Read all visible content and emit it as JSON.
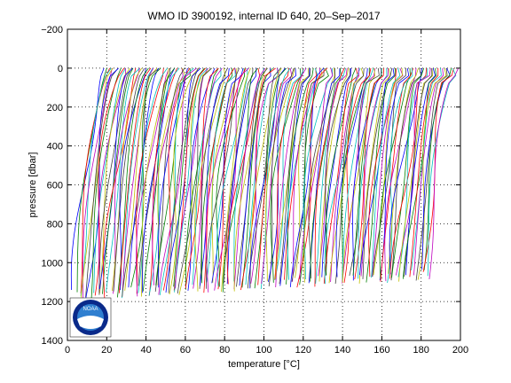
{
  "chart_data": {
    "type": "line",
    "title": "WMO ID 3900192, internal ID 640, 20–Sep–2017",
    "xlabel": "temperature [°C]",
    "ylabel": "pressure [dbar]",
    "xlim": [
      0,
      200
    ],
    "ylim": [
      -200,
      1400
    ],
    "y_reversed": true,
    "grid": true,
    "grid_style": "dotted",
    "xticks": [
      "0",
      "20",
      "40",
      "60",
      "80",
      "100",
      "120",
      "140",
      "160",
      "180",
      "200"
    ],
    "yticks": [
      "−200",
      "0",
      "200",
      "400",
      "600",
      "800",
      "1000",
      "1200",
      "1400"
    ],
    "profile_count": 180,
    "profile_x_start": 3,
    "profile_x_step": 1,
    "profile_description": "Waterfall of temperature profiles, each successive profile offset along the temperature axis",
    "series_colors": [
      "#0000ff",
      "#008000",
      "#ff0000",
      "#00bfbf",
      "#bf00bf",
      "#bfbf00",
      "#404040"
    ],
    "logo": {
      "text": "NOAA",
      "colors": {
        "outer": "#0a2a8a",
        "sky": "#2f7fd0",
        "wave": "#ffffff",
        "text": "#ffffff"
      }
    }
  }
}
